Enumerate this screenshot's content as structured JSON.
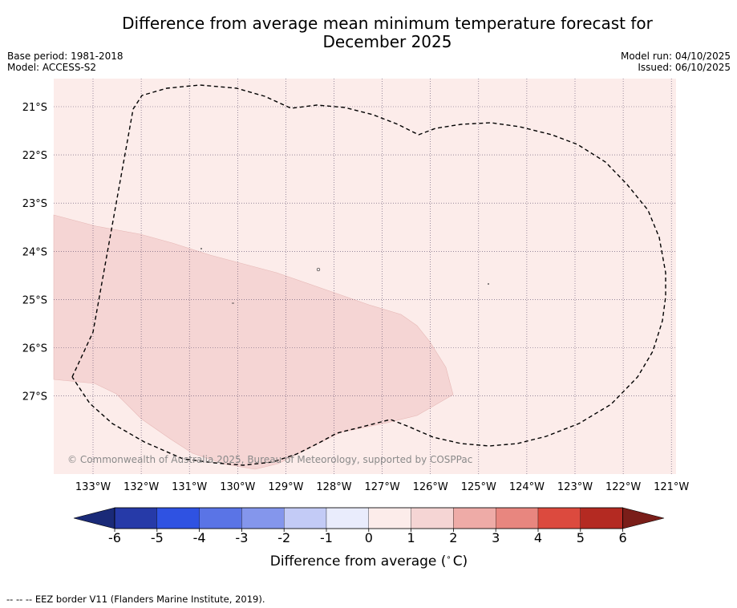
{
  "header": {
    "title_line1": "Difference from average mean minimum temperature forecast for",
    "title_line2": "December 2025",
    "base_period": "Base period: 1981-2018",
    "model": "Model: ACCESS-S2",
    "model_run": "Model run: 04/10/2025",
    "issued": "Issued: 06/10/2025"
  },
  "map": {
    "lon_labels": [
      "133°W",
      "132°W",
      "131°W",
      "130°W",
      "129°W",
      "128°W",
      "127°W",
      "126°W",
      "125°W",
      "124°W",
      "123°W",
      "122°W",
      "121°W"
    ],
    "lat_labels": [
      "21°S",
      "22°S",
      "23°S",
      "24°S",
      "25°S",
      "26°S",
      "27°S"
    ],
    "copyright": "© Commonwealth of Australia 2025, Bureau of Meteorology, supported by COSPPac",
    "background_category": "0 to 1",
    "highlight_category": "1 to 2",
    "background_color": "#fcecea",
    "highlight_color": "#f5d5d4",
    "eez_line_color": "#000000"
  },
  "colorbar": {
    "ticks": [
      "-6",
      "-5",
      "-4",
      "-3",
      "-2",
      "-1",
      "0",
      "1",
      "2",
      "3",
      "4",
      "5",
      "6"
    ],
    "colors": [
      "#263aa8",
      "#2f52e2",
      "#5a74e6",
      "#8496ec",
      "#c3cbf6",
      "#e9ecfc",
      "#fcecea",
      "#f5d5d4",
      "#eeaba7",
      "#e8867f",
      "#dc4a3e",
      "#b42a22"
    ],
    "low_extend_color": "#1a2a78",
    "high_extend_color": "#7a1e19",
    "label": "Difference from average (",
    "label_unit": "C)",
    "label_degree": "∘"
  },
  "footer": {
    "text": "--  --  -- EEZ border V11 (Flanders Marine Institute, 2019)."
  }
}
